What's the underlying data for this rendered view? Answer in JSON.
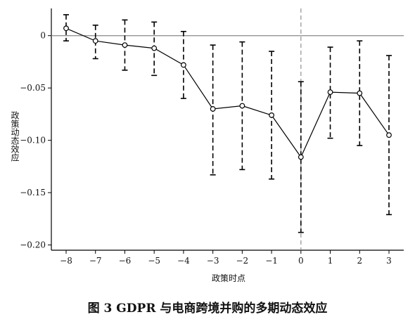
{
  "figure": {
    "caption": "图 3 GDPR 与电商跨境并购的多期动态效应"
  },
  "chart_data": {
    "type": "scatter",
    "xlabel": "政策时点",
    "ylabel": "政策动态效应",
    "categories": [
      "−8",
      "−7",
      "−6",
      "−5",
      "−4",
      "−3",
      "−2",
      "−1",
      "0",
      "1",
      "2",
      "3"
    ],
    "x": [
      -8,
      -7,
      -6,
      -5,
      -4,
      -3,
      -2,
      -1,
      0,
      1,
      2,
      3
    ],
    "ylim": [
      -0.205,
      0.026
    ],
    "yticks": [
      0,
      -0.05,
      -0.1,
      -0.15,
      -0.2
    ],
    "ytick_labels": [
      "0",
      "−0.05",
      "−0.10",
      "−0.15",
      "−0.20"
    ],
    "reference_hline": 0,
    "reference_vline": 0,
    "series": [
      {
        "values": [
          0.007,
          -0.005,
          -0.009,
          -0.012,
          -0.028,
          -0.07,
          -0.067,
          -0.076,
          -0.116,
          -0.054,
          -0.055,
          -0.095
        ],
        "ci_lower": [
          -0.005,
          -0.022,
          -0.033,
          -0.038,
          -0.06,
          -0.133,
          -0.128,
          -0.137,
          -0.188,
          -0.098,
          -0.105,
          -0.171
        ],
        "ci_upper": [
          0.02,
          0.01,
          0.015,
          0.013,
          0.004,
          -0.009,
          -0.006,
          -0.015,
          -0.044,
          -0.011,
          -0.005,
          -0.019
        ]
      }
    ],
    "colors": {
      "line": "#000000",
      "zero_line": "#888888",
      "vline": "#999999"
    },
    "grid": false,
    "legend": "none"
  }
}
